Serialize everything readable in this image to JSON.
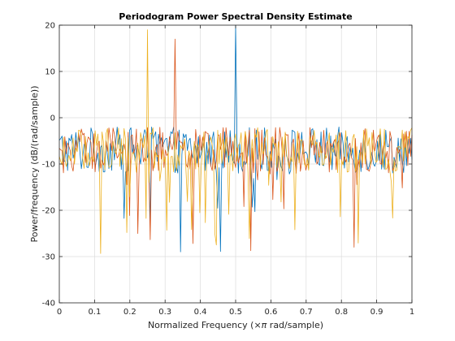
{
  "chart_data": {
    "type": "line",
    "title": "Periodogram Power Spectral Density Estimate",
    "xlabel_prefix": "Normalized Frequency  (",
    "xlabel_symbol": "×π",
    "xlabel_suffix": " rad/sample)",
    "ylabel": "Power/frequency (dB/(rad/sample))",
    "xlim": [
      0,
      1
    ],
    "ylim": [
      -40,
      20
    ],
    "x_ticks": [
      "0",
      "0.1",
      "0.2",
      "0.3",
      "0.4",
      "0.5",
      "0.6",
      "0.7",
      "0.8",
      "0.9",
      "1"
    ],
    "y_ticks": [
      "-40",
      "-30",
      "-20",
      "-10",
      "0",
      "10",
      "20"
    ],
    "grid": true,
    "series": [
      {
        "color": "#0072BD",
        "baseline_db": -7,
        "spread_db": 5,
        "dip_probability": 0.06,
        "peaks": [
          {
            "x": 0.5,
            "y": 20
          }
        ]
      },
      {
        "color": "#D95319",
        "baseline_db": -7,
        "spread_db": 5,
        "dip_probability": 0.06,
        "peaks": [
          {
            "x": 0.33,
            "y": 17
          }
        ]
      },
      {
        "color": "#EDB120",
        "baseline_db": -7,
        "spread_db": 5,
        "dip_probability": 0.06,
        "peaks": [
          {
            "x": 0.25,
            "y": 19
          }
        ]
      }
    ]
  }
}
